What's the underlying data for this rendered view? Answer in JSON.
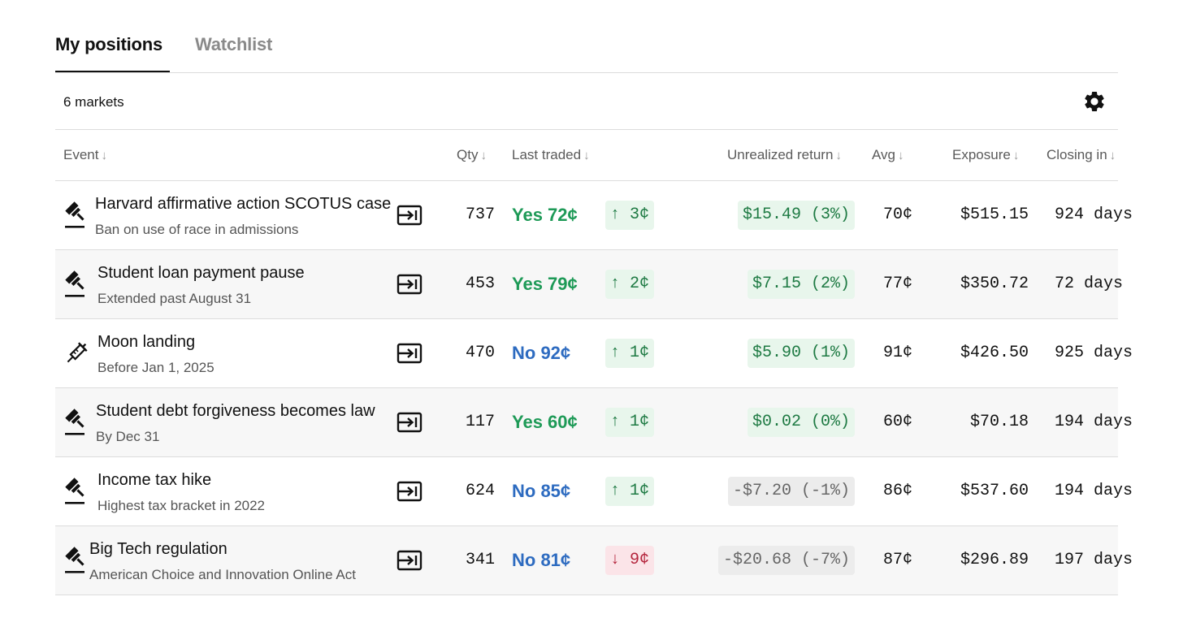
{
  "tabs": [
    {
      "label": "My positions",
      "active": true
    },
    {
      "label": "Watchlist",
      "active": false
    }
  ],
  "toolbar": {
    "market_count": "6 markets",
    "settings_icon": "gear-icon"
  },
  "table": {
    "columns": {
      "event": "Event",
      "qty": "Qty",
      "last_traded": "Last traded",
      "unrealized_return": "Unrealized return",
      "avg": "Avg",
      "exposure": "Exposure",
      "closing_in": "Closing in"
    },
    "rows": [
      {
        "icon": "gavel-icon",
        "title": "Harvard affirmative action SCOTUS case",
        "subtitle": "Ban on use of race in admissions",
        "qty": "737",
        "last": "Yes 72¢",
        "side": "yes",
        "change": "↑ 3¢",
        "change_dir": "up",
        "return": "$15.49 (3%)",
        "return_sign": "pos",
        "avg": "70¢",
        "exposure": "$515.15",
        "closing": "924 days"
      },
      {
        "icon": "gavel-icon",
        "title": "Student loan payment pause",
        "subtitle": "Extended past August 31",
        "qty": "453",
        "last": "Yes 79¢",
        "side": "yes",
        "change": "↑ 2¢",
        "change_dir": "up",
        "return": "$7.15 (2%)",
        "return_sign": "pos",
        "avg": "77¢",
        "exposure": "$350.72",
        "closing": "72 days"
      },
      {
        "icon": "syringe-icon",
        "title": "Moon landing",
        "subtitle": "Before Jan 1, 2025",
        "qty": "470",
        "last": "No 92¢",
        "side": "no",
        "change": "↑ 1¢",
        "change_dir": "up",
        "return": "$5.90 (1%)",
        "return_sign": "pos",
        "avg": "91¢",
        "exposure": "$426.50",
        "closing": "925 days"
      },
      {
        "icon": "gavel-icon",
        "title": "Student debt forgiveness becomes law",
        "subtitle": "By Dec 31",
        "qty": "117",
        "last": "Yes 60¢",
        "side": "yes",
        "change": "↑ 1¢",
        "change_dir": "up",
        "return": "$0.02 (0%)",
        "return_sign": "pos",
        "avg": "60¢",
        "exposure": "$70.18",
        "closing": "194 days"
      },
      {
        "icon": "gavel-icon",
        "title": "Income tax hike",
        "subtitle": "Highest tax bracket in 2022",
        "qty": "624",
        "last": "No 85¢",
        "side": "no",
        "change": "↑ 1¢",
        "change_dir": "up",
        "return": "-$7.20 (-1%)",
        "return_sign": "neg",
        "avg": "86¢",
        "exposure": "$537.60",
        "closing": "194 days"
      },
      {
        "icon": "gavel-icon",
        "title": "Big Tech regulation",
        "subtitle": "American Choice and Innovation Online Act",
        "qty": "341",
        "last": "No 81¢",
        "side": "no",
        "change": "↓ 9¢",
        "change_dir": "down",
        "return": "-$20.68 (-7%)",
        "return_sign": "neg",
        "avg": "87¢",
        "exposure": "$296.89",
        "closing": "197 days"
      }
    ]
  },
  "colors": {
    "yes": "#1e9a57",
    "no": "#2d6bc0",
    "up_bg": "#e8f6ec",
    "down_bg": "#fbe4e8",
    "neg_bg": "#ececec"
  }
}
